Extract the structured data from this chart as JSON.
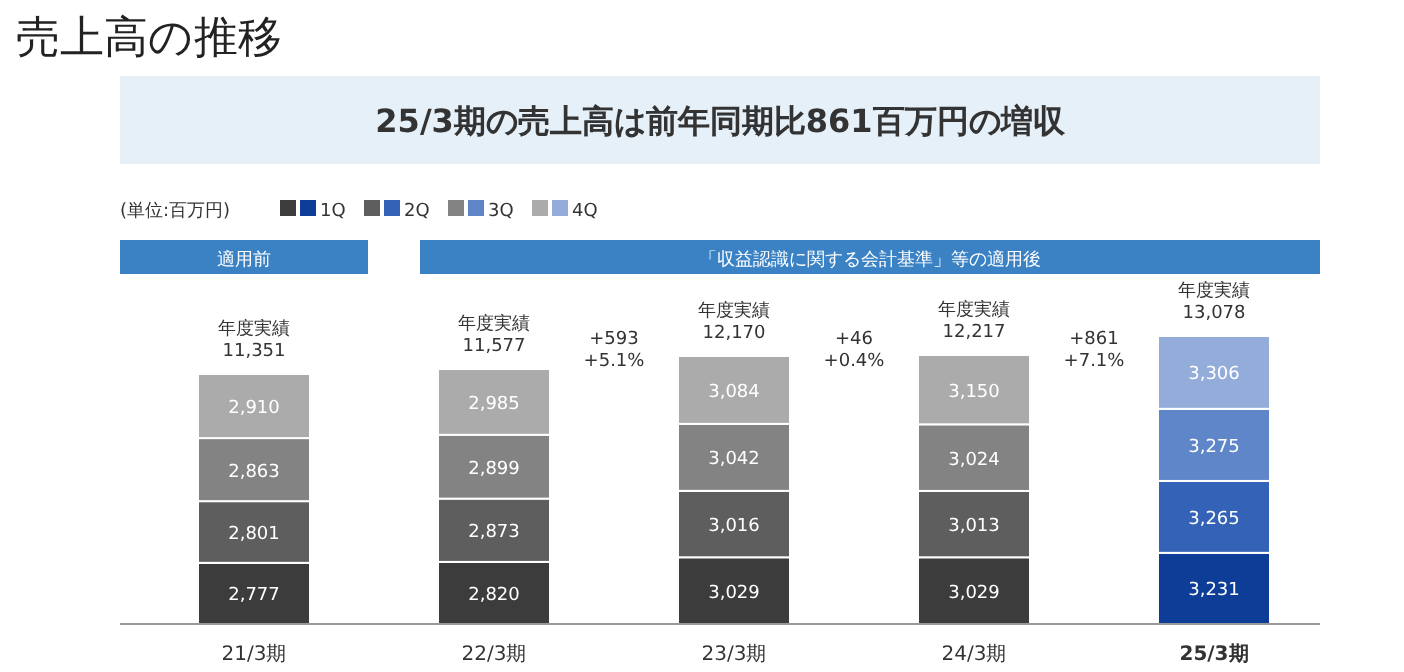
{
  "chart_data": {
    "type": "bar",
    "stacked": true,
    "title": "売上高の推移",
    "subtitle": "25/3期の売上高は前年同期比861百万円の増収",
    "categories": [
      "21/3期",
      "22/3期",
      "23/3期",
      "24/3期",
      "25/3期"
    ],
    "series": [
      {
        "name": "1Q",
        "colors": [
          "#3c3c3c",
          "#3c3c3c",
          "#3c3c3c",
          "#3c3c3c",
          "#0d3d96"
        ],
        "values": [
          2777,
          2820,
          3029,
          3029,
          3231
        ],
        "value_labels": [
          "2,777",
          "2,820",
          "3,029",
          "3,029",
          "3,231"
        ]
      },
      {
        "name": "2Q",
        "colors": [
          "#5e5e5e",
          "#5e5e5e",
          "#5e5e5e",
          "#5e5e5e",
          "#3462b6"
        ],
        "values": [
          2801,
          2873,
          3016,
          3013,
          3265
        ],
        "value_labels": [
          "2,801",
          "2,873",
          "3,016",
          "3,013",
          "3,265"
        ]
      },
      {
        "name": "3Q",
        "colors": [
          "#838383",
          "#838383",
          "#838383",
          "#838383",
          "#5f86c8"
        ],
        "values": [
          2863,
          2899,
          3042,
          3024,
          3275
        ],
        "value_labels": [
          "2,863",
          "2,899",
          "3,042",
          "3,024",
          "3,275"
        ]
      },
      {
        "name": "4Q",
        "colors": [
          "#ababab",
          "#ababab",
          "#ababab",
          "#ababab",
          "#93acd9"
        ],
        "values": [
          2910,
          2985,
          3084,
          3150,
          3306
        ],
        "value_labels": [
          "2,910",
          "2,985",
          "3,084",
          "3,150",
          "3,306"
        ]
      }
    ],
    "totals": [
      "年度実績\n11,351",
      "年度実績\n11,577",
      "年度実績\n12,170",
      "年度実績\n12,217",
      "年度実績\n13,078"
    ],
    "legend": "top left",
    "annotations": [
      "(単位:百万円)",
      "適用前",
      "「収益認識に関する会計基準」等の適用後",
      "+593\n+5.1%",
      "+46\n+0.4%",
      "+861\n+7.1%"
    ]
  }
}
